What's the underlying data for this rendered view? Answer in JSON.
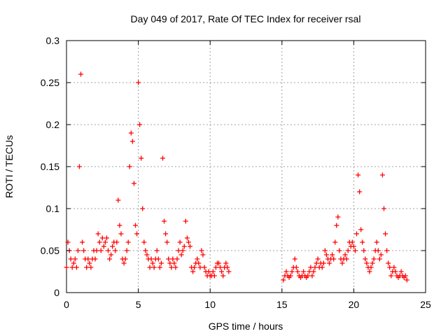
{
  "chart_data": {
    "type": "scatter",
    "title": "Day 049 of 2017, Rate Of TEC Index for receiver rsal",
    "xlabel": "GPS time / hours",
    "ylabel": "ROTI / TECUs",
    "xlim": [
      0,
      25
    ],
    "ylim": [
      0,
      0.3
    ],
    "xticks": [
      "0",
      "5",
      "10",
      "15",
      "20",
      "25"
    ],
    "yticks": [
      "0",
      "0.05",
      "0.1",
      "0.15",
      "0.2",
      "0.25",
      "0.3"
    ],
    "grid": true,
    "marker": "+",
    "color": "#ff0000",
    "data_gap": [
      11.5,
      15.0
    ],
    "series": [
      {
        "x": [
          0.0,
          0.1,
          0.2,
          0.3,
          0.4,
          0.5,
          0.6,
          0.7,
          0.8,
          0.9,
          1.0,
          1.1,
          1.2,
          1.3,
          1.4,
          1.5,
          1.6,
          1.7,
          1.8,
          1.9,
          2.0,
          2.1,
          2.2,
          2.3,
          2.4,
          2.5,
          2.6,
          2.7,
          2.8,
          2.9,
          3.0,
          3.1,
          3.2,
          3.3,
          3.4,
          3.5,
          3.6,
          3.7,
          3.8,
          3.9,
          4.0,
          4.1,
          4.2,
          4.3,
          4.4,
          4.5,
          4.6,
          4.7,
          4.8,
          4.9,
          5.0,
          5.1,
          5.2,
          5.3,
          5.4,
          5.5,
          5.6,
          5.7,
          5.8,
          5.9,
          6.0,
          6.1,
          6.2,
          6.3,
          6.4,
          6.5,
          6.6,
          6.7,
          6.8,
          6.9,
          7.0,
          7.1,
          7.2,
          7.3,
          7.4,
          7.5,
          7.6,
          7.7,
          7.8,
          7.9,
          8.0,
          8.1,
          8.2,
          8.3,
          8.4,
          8.5,
          8.6,
          8.7,
          8.8,
          8.9,
          9.0,
          9.1,
          9.2,
          9.3,
          9.4,
          9.5,
          9.6,
          9.7,
          9.8,
          9.9,
          10.0,
          10.1,
          10.2,
          10.3,
          10.4,
          10.5,
          10.6,
          10.7,
          10.8,
          10.9,
          11.0,
          11.1,
          11.2,
          11.3,
          15.1,
          15.2,
          15.3,
          15.4,
          15.5,
          15.6,
          15.7,
          15.8,
          15.9,
          16.0,
          16.1,
          16.2,
          16.3,
          16.4,
          16.5,
          16.6,
          16.7,
          16.8,
          16.9,
          17.0,
          17.1,
          17.2,
          17.3,
          17.4,
          17.5,
          17.6,
          17.7,
          17.8,
          17.9,
          18.0,
          18.1,
          18.2,
          18.3,
          18.4,
          18.5,
          18.6,
          18.7,
          18.8,
          18.9,
          19.0,
          19.1,
          19.2,
          19.3,
          19.4,
          19.5,
          19.6,
          19.7,
          19.8,
          19.9,
          20.0,
          20.1,
          20.2,
          20.3,
          20.4,
          20.5,
          20.6,
          20.7,
          20.8,
          20.9,
          21.0,
          21.1,
          21.2,
          21.3,
          21.4,
          21.5,
          21.6,
          21.7,
          21.8,
          21.9,
          22.0,
          22.1,
          22.2,
          22.3,
          22.4,
          22.5,
          22.6,
          22.7,
          22.8,
          22.9,
          23.0,
          23.1,
          23.2,
          23.3,
          23.4,
          23.5,
          23.6,
          23.7
        ],
        "y": [
          0.03,
          0.06,
          0.05,
          0.04,
          0.03,
          0.035,
          0.04,
          0.03,
          0.05,
          0.15,
          0.26,
          0.06,
          0.05,
          0.04,
          0.03,
          0.04,
          0.035,
          0.03,
          0.04,
          0.05,
          0.04,
          0.05,
          0.07,
          0.06,
          0.05,
          0.065,
          0.055,
          0.06,
          0.065,
          0.05,
          0.04,
          0.045,
          0.055,
          0.06,
          0.05,
          0.06,
          0.11,
          0.08,
          0.07,
          0.04,
          0.035,
          0.04,
          0.05,
          0.06,
          0.15,
          0.19,
          0.18,
          0.13,
          0.08,
          0.07,
          0.25,
          0.2,
          0.16,
          0.1,
          0.06,
          0.05,
          0.045,
          0.04,
          0.03,
          0.04,
          0.035,
          0.03,
          0.04,
          0.05,
          0.04,
          0.03,
          0.035,
          0.16,
          0.085,
          0.07,
          0.06,
          0.04,
          0.035,
          0.03,
          0.04,
          0.035,
          0.03,
          0.04,
          0.05,
          0.06,
          0.045,
          0.05,
          0.055,
          0.085,
          0.065,
          0.06,
          0.055,
          0.03,
          0.025,
          0.03,
          0.035,
          0.04,
          0.035,
          0.03,
          0.05,
          0.045,
          0.03,
          0.025,
          0.02,
          0.025,
          0.02,
          0.02,
          0.025,
          0.02,
          0.03,
          0.035,
          0.035,
          0.03,
          0.025,
          0.02,
          0.03,
          0.035,
          0.03,
          0.025,
          0.015,
          0.02,
          0.025,
          0.02,
          0.018,
          0.02,
          0.025,
          0.03,
          0.04,
          0.03,
          0.025,
          0.02,
          0.018,
          0.02,
          0.025,
          0.02,
          0.018,
          0.02,
          0.025,
          0.03,
          0.02,
          0.025,
          0.03,
          0.035,
          0.04,
          0.03,
          0.035,
          0.03,
          0.035,
          0.05,
          0.045,
          0.04,
          0.035,
          0.04,
          0.045,
          0.04,
          0.06,
          0.08,
          0.09,
          0.05,
          0.04,
          0.035,
          0.04,
          0.045,
          0.04,
          0.05,
          0.06,
          0.055,
          0.06,
          0.055,
          0.05,
          0.07,
          0.14,
          0.12,
          0.075,
          0.06,
          0.05,
          0.04,
          0.035,
          0.03,
          0.025,
          0.03,
          0.035,
          0.04,
          0.05,
          0.06,
          0.05,
          0.04,
          0.045,
          0.14,
          0.1,
          0.07,
          0.05,
          0.035,
          0.03,
          0.02,
          0.025,
          0.03,
          0.025,
          0.02,
          0.018,
          0.02,
          0.025,
          0.02,
          0.018,
          0.02,
          0.015
        ]
      }
    ]
  }
}
